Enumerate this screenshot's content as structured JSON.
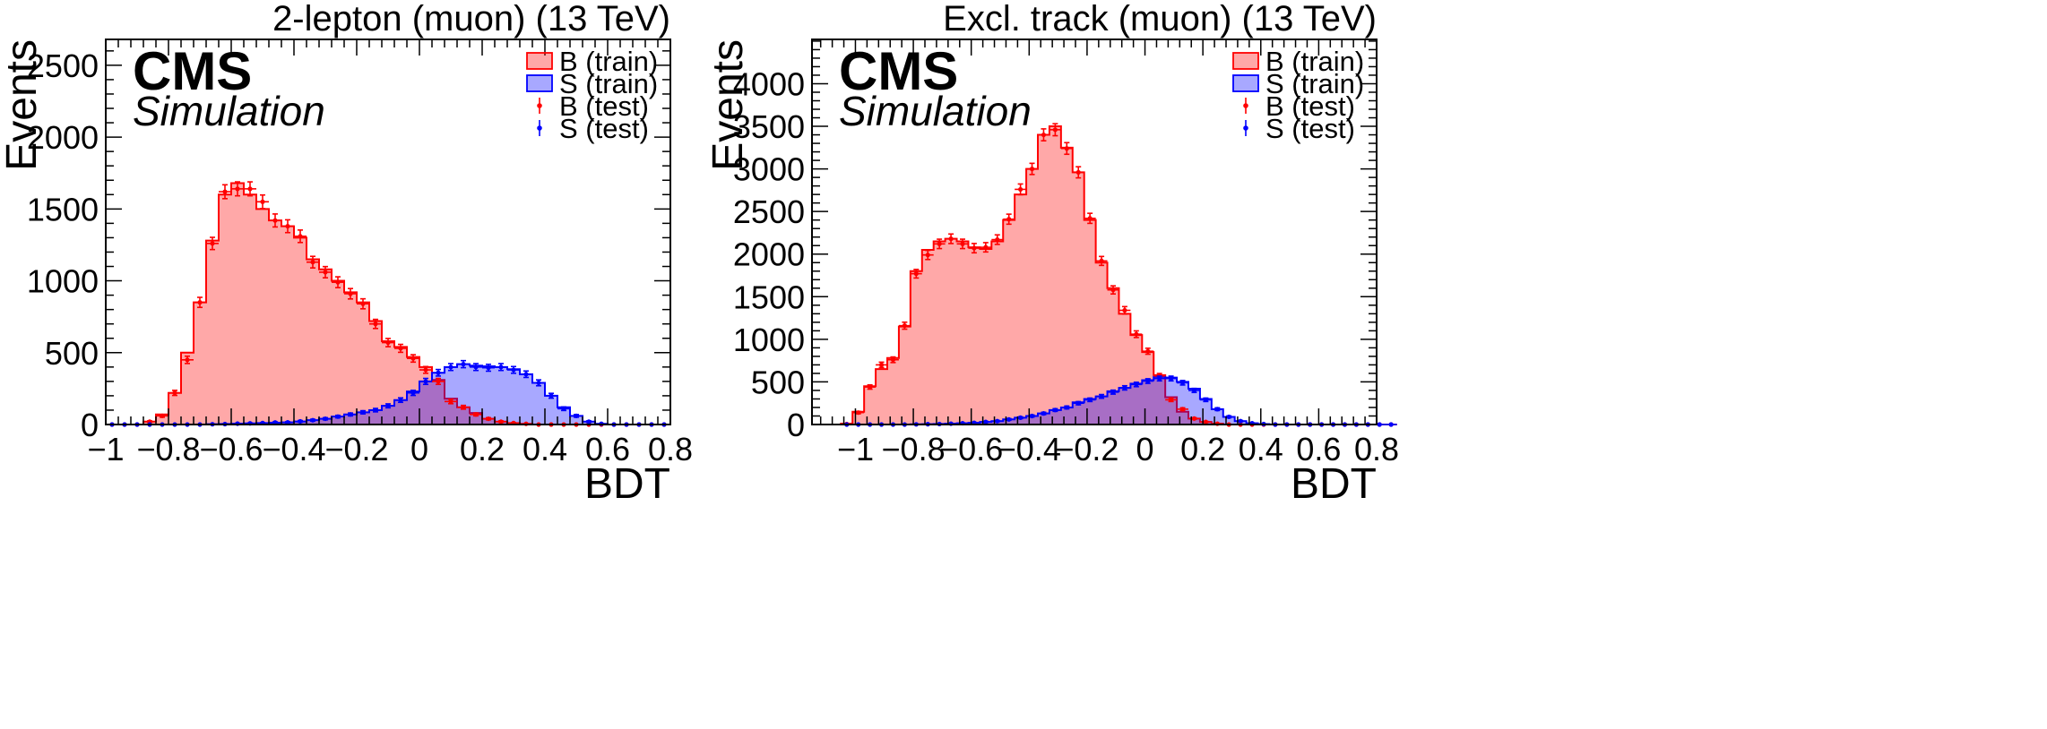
{
  "chart_data": [
    {
      "type": "histogram",
      "title": "2-lepton (muon) (13 TeV)",
      "xlabel": "BDT",
      "ylabel": "Events",
      "experiment": "CMS",
      "subtitle": "Simulation",
      "xlim": [
        -1,
        0.8
      ],
      "ylim": [
        0,
        2680
      ],
      "xticks": [
        -1,
        -0.8,
        -0.6,
        -0.4,
        -0.2,
        0,
        0.2,
        0.4,
        0.6,
        0.8
      ],
      "xtick_labels": [
        "−1",
        "−0.8",
        "−0.6",
        "−0.4",
        "−0.2",
        "0",
        "0.2",
        "0.4",
        "0.6",
        "0.8"
      ],
      "yticks": [
        0,
        500,
        1000,
        1500,
        2000,
        2500
      ],
      "ytick_labels": [
        "0",
        "500",
        "1000",
        "1500",
        "2000",
        "2500"
      ],
      "bin_edges_start": -1,
      "bin_width": 0.04,
      "legend": [
        "B (train)",
        "S (train)",
        "B (test)",
        "S (test)"
      ],
      "series": [
        {
          "name": "B (train)",
          "style": "fill",
          "color": "#ff0000",
          "values": [
            0,
            0,
            0,
            20,
            70,
            220,
            500,
            850,
            1280,
            1600,
            1680,
            1600,
            1500,
            1420,
            1380,
            1300,
            1150,
            1080,
            1000,
            920,
            850,
            720,
            580,
            540,
            470,
            400,
            310,
            180,
            120,
            80,
            40,
            20,
            10,
            5,
            0,
            0,
            0,
            0,
            0,
            0,
            0,
            0,
            0,
            0,
            0
          ]
        },
        {
          "name": "S (train)",
          "style": "fill",
          "color": "#0000ff",
          "values": [
            0,
            0,
            0,
            0,
            0,
            0,
            0,
            0,
            2,
            4,
            6,
            8,
            10,
            12,
            15,
            20,
            30,
            40,
            55,
            70,
            85,
            100,
            130,
            170,
            230,
            300,
            360,
            400,
            420,
            410,
            405,
            400,
            385,
            350,
            290,
            200,
            120,
            60,
            20,
            5,
            0,
            0,
            0,
            0,
            0
          ]
        },
        {
          "name": "B (test)",
          "style": "points",
          "color": "#ff0000",
          "values": [
            0,
            0,
            0,
            20,
            60,
            220,
            450,
            850,
            1260,
            1620,
            1640,
            1640,
            1550,
            1420,
            1380,
            1310,
            1130,
            1060,
            990,
            910,
            840,
            700,
            570,
            530,
            460,
            380,
            300,
            160,
            120,
            70,
            40,
            20,
            10,
            5,
            0,
            0,
            0,
            0,
            0,
            0,
            0,
            0,
            0,
            0,
            0
          ]
        },
        {
          "name": "S (test)",
          "style": "points",
          "color": "#0000ff",
          "values": [
            0,
            0,
            0,
            0,
            0,
            0,
            0,
            0,
            2,
            3,
            6,
            8,
            10,
            14,
            15,
            22,
            30,
            40,
            55,
            70,
            85,
            100,
            130,
            170,
            220,
            300,
            360,
            400,
            420,
            400,
            395,
            400,
            380,
            350,
            290,
            200,
            110,
            60,
            20,
            5,
            0,
            0,
            0,
            0,
            0
          ]
        }
      ]
    },
    {
      "type": "histogram",
      "title": "Excl. track (muon) (13 TeV)",
      "xlabel": "BDT",
      "ylabel": "Events",
      "experiment": "CMS",
      "subtitle": "Simulation",
      "xlim": [
        -1.15,
        0.8
      ],
      "ylim": [
        0,
        4520
      ],
      "xticks": [
        -1,
        -0.8,
        -0.6,
        -0.4,
        -0.2,
        0,
        0.2,
        0.4,
        0.6,
        0.8
      ],
      "xtick_labels": [
        "−1",
        "−0.8",
        "−0.6",
        "−0.4",
        "−0.2",
        "0",
        "0.2",
        "0.4",
        "0.6",
        "0.8"
      ],
      "yticks": [
        0,
        500,
        1000,
        1500,
        2000,
        2500,
        3000,
        3500,
        4000
      ],
      "ytick_labels": [
        "0",
        "500",
        "1000",
        "1500",
        "2000",
        "2500",
        "3000",
        "3500",
        "4000"
      ],
      "bin_edges_start": -1.05,
      "bin_width": 0.04,
      "legend": [
        "B (train)",
        "S (train)",
        "B (test)",
        "S (test)"
      ],
      "series": [
        {
          "name": "B (train)",
          "style": "fill",
          "color": "#ff0000",
          "values": [
            10,
            150,
            450,
            650,
            780,
            1150,
            1800,
            2050,
            2150,
            2180,
            2150,
            2080,
            2060,
            2150,
            2400,
            2700,
            3000,
            3400,
            3500,
            3250,
            2960,
            2400,
            1900,
            1600,
            1300,
            1050,
            850,
            580,
            320,
            150,
            70,
            30,
            10,
            0,
            0,
            0,
            0,
            0,
            0,
            0,
            0,
            0,
            0,
            0,
            0,
            0,
            0,
            0
          ]
        },
        {
          "name": "S (train)",
          "style": "fill",
          "color": "#0000ff",
          "values": [
            0,
            0,
            0,
            0,
            0,
            0,
            2,
            4,
            6,
            10,
            15,
            20,
            30,
            40,
            60,
            80,
            100,
            130,
            170,
            200,
            260,
            300,
            330,
            390,
            430,
            480,
            520,
            560,
            550,
            500,
            420,
            300,
            180,
            90,
            40,
            15,
            5,
            0,
            0,
            0,
            0,
            0,
            0,
            0,
            0,
            0,
            0,
            0
          ]
        },
        {
          "name": "B (test)",
          "style": "points",
          "color": "#ff0000",
          "values": [
            5,
            140,
            440,
            700,
            760,
            1160,
            1770,
            1990,
            2120,
            2180,
            2120,
            2070,
            2080,
            2170,
            2410,
            2760,
            3000,
            3400,
            3460,
            3240,
            2960,
            2420,
            1920,
            1580,
            1340,
            1060,
            860,
            570,
            290,
            180,
            70,
            30,
            10,
            0,
            0,
            0,
            0,
            0,
            0,
            0,
            0,
            0,
            0,
            0,
            0,
            0,
            0,
            0
          ]
        },
        {
          "name": "S (test)",
          "style": "points",
          "color": "#0000ff",
          "values": [
            0,
            0,
            0,
            0,
            0,
            0,
            2,
            4,
            6,
            10,
            15,
            20,
            30,
            40,
            60,
            80,
            100,
            130,
            170,
            200,
            250,
            290,
            330,
            380,
            430,
            470,
            510,
            540,
            540,
            490,
            400,
            290,
            180,
            90,
            40,
            15,
            5,
            0,
            0,
            0,
            0,
            0,
            0,
            0,
            0,
            0,
            0,
            0
          ]
        }
      ]
    }
  ]
}
